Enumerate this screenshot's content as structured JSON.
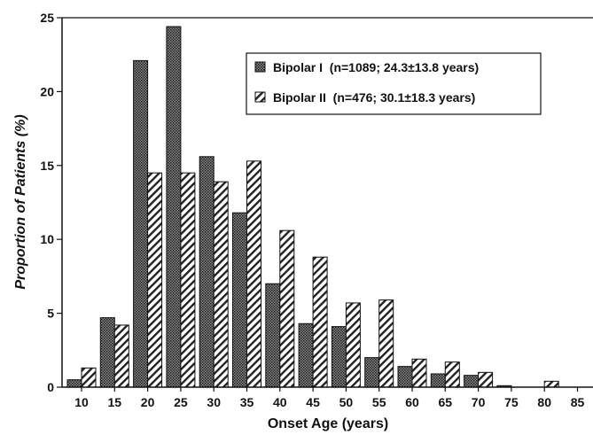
{
  "chart_data": {
    "type": "bar",
    "title": "",
    "xlabel": "Onset Age (years)",
    "ylabel": "Proportion of Patients (%)",
    "ylim": [
      0,
      25
    ],
    "yticks": [
      "0",
      "5",
      "10",
      "15",
      "20",
      "25"
    ],
    "categories": [
      "10",
      "15",
      "20",
      "25",
      "30",
      "35",
      "40",
      "45",
      "50",
      "55",
      "60",
      "65",
      "70",
      "75",
      "80",
      "85"
    ],
    "grid": false,
    "legend_position": "top-right",
    "series": [
      {
        "name": "Bipolar I",
        "legend_label": "Bipolar I  (n=1089; 24.3±13.8 years)",
        "pattern": "dotted-dark",
        "values": [
          0.5,
          4.7,
          22.1,
          24.4,
          15.6,
          11.8,
          7.0,
          4.3,
          4.1,
          2.0,
          1.4,
          0.9,
          0.8,
          0.1,
          0.0,
          0.0
        ]
      },
      {
        "name": "Bipolar II",
        "legend_label": "Bipolar II  (n=476; 30.1±18.3 years)",
        "pattern": "diagonal-hatch",
        "values": [
          1.3,
          4.2,
          14.5,
          14.5,
          13.9,
          15.3,
          10.6,
          8.8,
          5.7,
          5.9,
          1.9,
          1.7,
          1.0,
          0.0,
          0.4,
          0.0
        ]
      }
    ]
  }
}
